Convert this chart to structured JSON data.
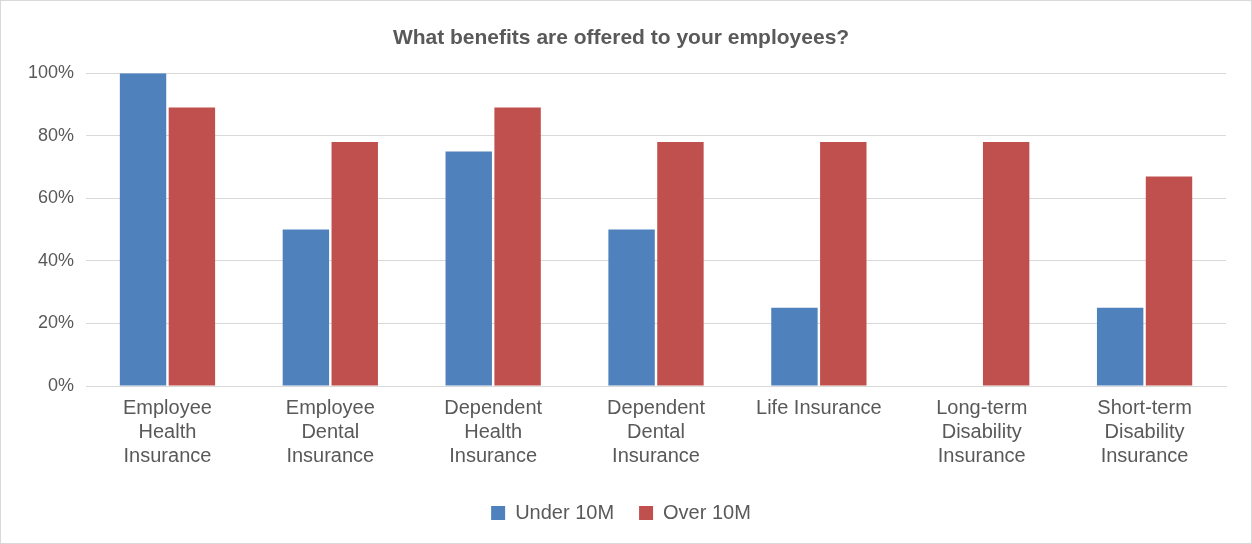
{
  "chart_data": {
    "type": "bar",
    "title": "What benefits are offered to your employees?",
    "categories": [
      "Employee Health Insurance",
      "Employee Dental Insurance",
      "Dependent Health Insurance",
      "Dependent Dental Insurance",
      "Life Insurance",
      "Long-term Disability Insurance",
      "Short-term Disability Insurance"
    ],
    "series": [
      {
        "name": "Under 10M",
        "color": "#4f81bd",
        "values": [
          100,
          50,
          75,
          50,
          25,
          0,
          25
        ]
      },
      {
        "name": "Over 10M",
        "color": "#c0504d",
        "values": [
          89,
          78,
          89,
          78,
          78,
          78,
          67
        ]
      }
    ],
    "ylim": [
      0,
      100
    ],
    "yticks": [
      {
        "value": 0,
        "label": "0%"
      },
      {
        "value": 20,
        "label": "20%"
      },
      {
        "value": 40,
        "label": "40%"
      },
      {
        "value": 60,
        "label": "60%"
      },
      {
        "value": 80,
        "label": "80%"
      },
      {
        "value": 100,
        "label": "100%"
      }
    ],
    "grid": "y",
    "legend": "bottom"
  }
}
